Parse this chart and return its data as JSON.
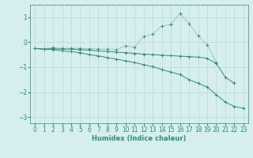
{
  "x": [
    0,
    1,
    2,
    3,
    4,
    5,
    6,
    7,
    8,
    9,
    10,
    11,
    12,
    13,
    14,
    15,
    16,
    17,
    18,
    19,
    20,
    21,
    22,
    23
  ],
  "line1": [
    -0.25,
    -0.28,
    -0.22,
    -0.25,
    -0.24,
    -0.25,
    -0.26,
    -0.27,
    -0.28,
    -0.29,
    -0.15,
    -0.2,
    0.22,
    0.33,
    0.65,
    0.72,
    1.15,
    0.75,
    0.25,
    -0.1,
    -0.8,
    null,
    null,
    null
  ],
  "line2": [
    -0.25,
    -0.28,
    -0.26,
    -0.28,
    -0.28,
    -0.3,
    -0.32,
    -0.35,
    -0.37,
    -0.4,
    -0.42,
    -0.45,
    -0.48,
    -0.5,
    -0.52,
    -0.54,
    -0.56,
    -0.58,
    -0.6,
    -0.65,
    -0.85,
    -1.4,
    -1.65,
    null
  ],
  "line3": [
    -0.25,
    -0.28,
    -0.3,
    -0.35,
    -0.38,
    -0.42,
    -0.5,
    -0.55,
    -0.62,
    -0.68,
    -0.75,
    -0.82,
    -0.9,
    -0.98,
    -1.1,
    -1.2,
    -1.3,
    -1.5,
    -1.65,
    -1.8,
    -2.1,
    -2.4,
    -2.58,
    -2.65
  ],
  "color": "#2e8b7a",
  "bg_color": "#d6eeee",
  "grid_color": "#b8d8d8",
  "xlim": [
    -0.5,
    23.5
  ],
  "ylim": [
    -3.25,
    1.5
  ],
  "yticks": [
    -3,
    -2,
    -1,
    0,
    1
  ],
  "xticks": [
    0,
    1,
    2,
    3,
    4,
    5,
    6,
    7,
    8,
    9,
    10,
    11,
    12,
    13,
    14,
    15,
    16,
    17,
    18,
    19,
    20,
    21,
    22,
    23
  ],
  "xlabel": "Humidex (Indice chaleur)",
  "tick_fontsize": 5.5,
  "xlabel_fontsize": 6.0,
  "line_width": 0.7,
  "marker_size": 3.0
}
